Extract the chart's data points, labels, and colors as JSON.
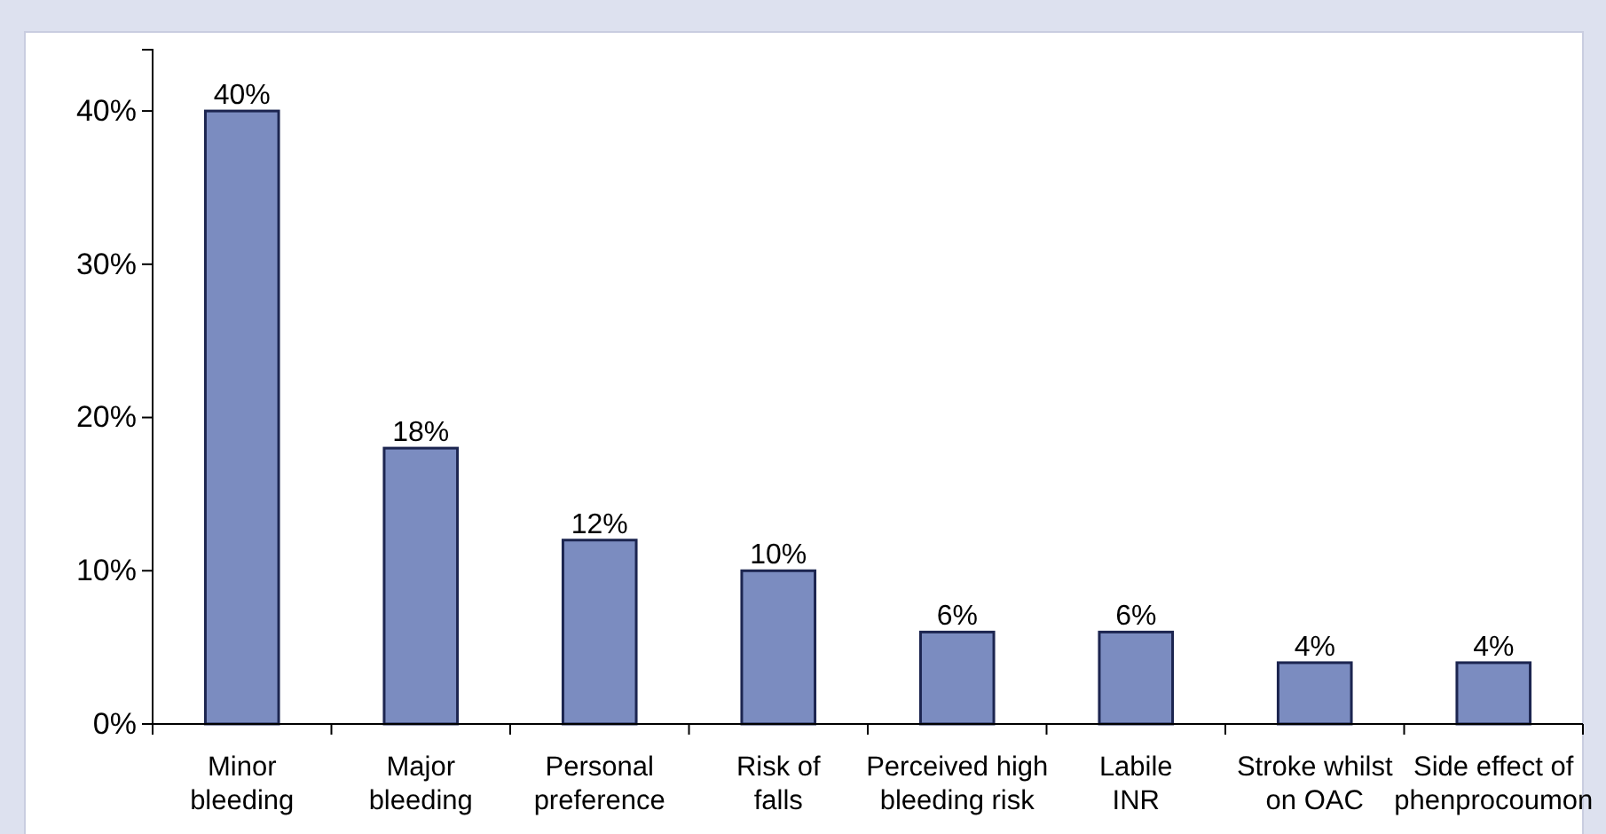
{
  "chart_data": {
    "type": "bar",
    "categories": [
      "Minor\nbleeding",
      "Major\nbleeding",
      "Personal\npreference",
      "Risk of\nfalls",
      "Perceived high\nbleeding risk",
      "Labile\nINR",
      "Stroke whilst\non OAC",
      "Side effect of\nphenprocoumon"
    ],
    "values": [
      40,
      18,
      12,
      10,
      6,
      6,
      4,
      4
    ],
    "value_labels": [
      "40%",
      "18%",
      "12%",
      "10%",
      "6%",
      "6%",
      "4%",
      "4%"
    ],
    "color": "#7b8cc0",
    "ylim": [
      0,
      44
    ],
    "yticks": [
      {
        "value": 0,
        "label": "0%"
      },
      {
        "value": 10,
        "label": "10%"
      },
      {
        "value": 20,
        "label": "20%"
      },
      {
        "value": 30,
        "label": "30%"
      },
      {
        "value": 40,
        "label": "40%"
      }
    ],
    "grid": false
  }
}
